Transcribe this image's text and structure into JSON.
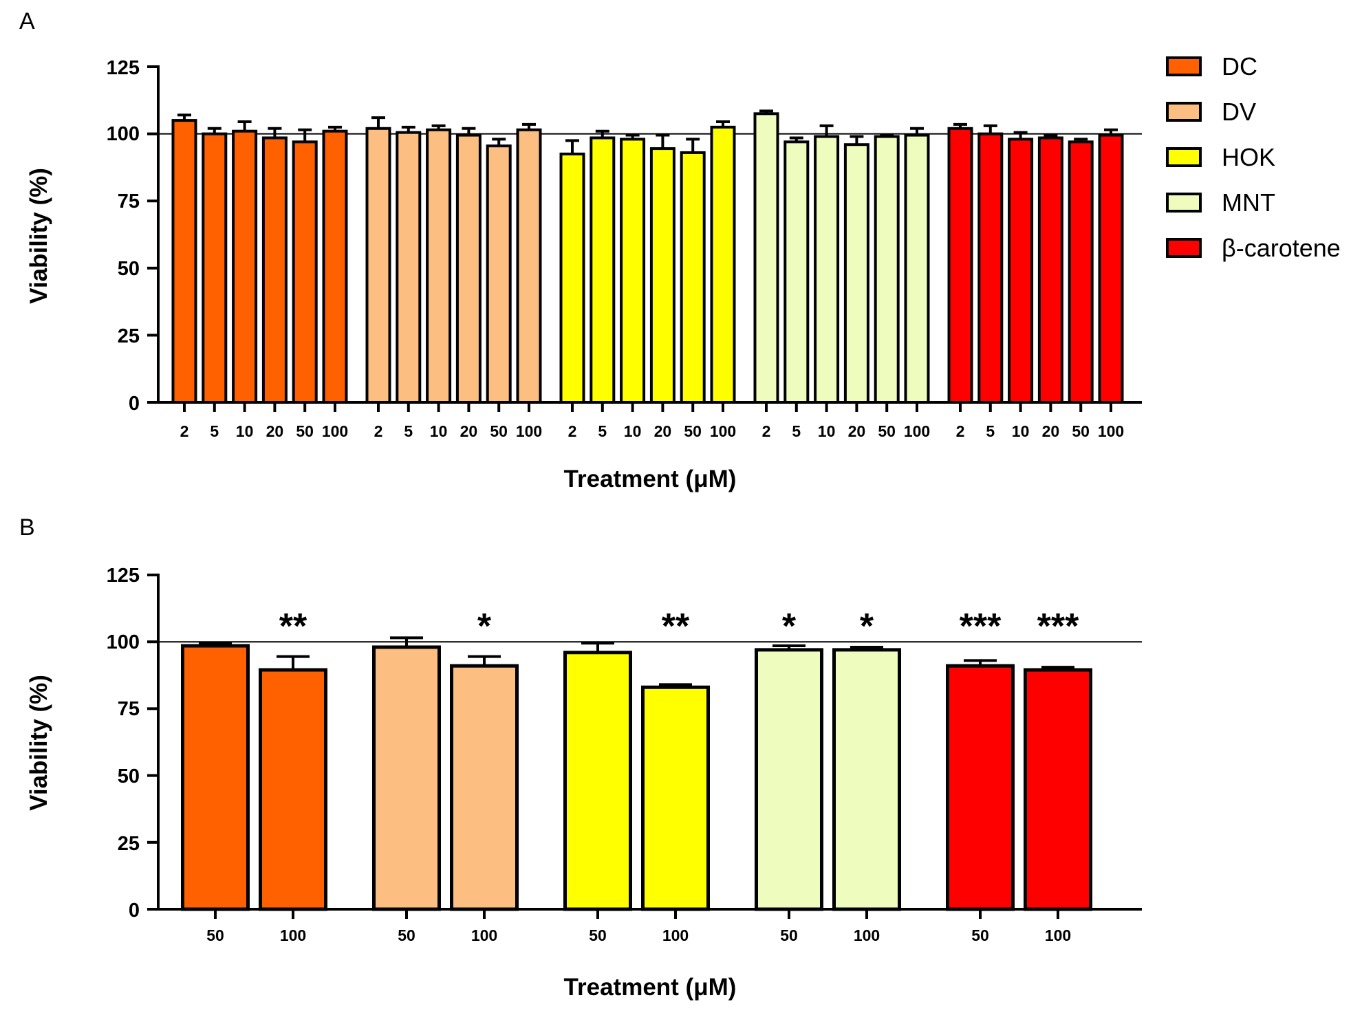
{
  "chart_data": [
    {
      "type": "bar",
      "panel": "A",
      "title": "",
      "xlabel": "Treatment (μM)",
      "ylabel": "Viability (%)",
      "ylim": [
        0,
        125
      ],
      "yticks": [
        "0",
        "25",
        "50",
        "75",
        "100",
        "125"
      ],
      "reference_line": 100,
      "categories": [
        "2",
        "5",
        "10",
        "20",
        "50",
        "100"
      ],
      "series": [
        {
          "name": "DC",
          "color": "#FF6000",
          "values": [
            105,
            100,
            101,
            98.5,
            97,
            101
          ],
          "errors": [
            2,
            2,
            3.5,
            3.5,
            4.5,
            1.5
          ]
        },
        {
          "name": "DV",
          "color": "#FDBE82",
          "values": [
            102,
            100.5,
            101.5,
            99.5,
            95.5,
            101.5
          ],
          "errors": [
            4,
            2,
            1.5,
            2.5,
            2.5,
            2
          ]
        },
        {
          "name": "HOK",
          "color": "#FFFF00",
          "values": [
            92.5,
            98.5,
            98,
            94.5,
            93,
            102.5
          ],
          "errors": [
            5,
            2.5,
            1.5,
            5,
            5,
            2
          ]
        },
        {
          "name": "MNT",
          "color": "#EEFDBD",
          "values": [
            107.5,
            97,
            99,
            96,
            99,
            99.5
          ],
          "errors": [
            1,
            1.5,
            4,
            3,
            0.5,
            2.5
          ]
        },
        {
          "name": "β-carotene",
          "color": "#FF0000",
          "values": [
            102,
            100,
            98,
            98.5,
            97,
            99.5
          ],
          "errors": [
            1.5,
            3,
            2.5,
            1,
            1,
            2
          ]
        }
      ]
    },
    {
      "type": "bar",
      "panel": "B",
      "title": "",
      "xlabel": "Treatment (μM)",
      "ylabel": "Viability (%)",
      "ylim": [
        0,
        125
      ],
      "yticks": [
        "0",
        "25",
        "50",
        "75",
        "100",
        "125"
      ],
      "reference_line": 100,
      "categories": [
        "50",
        "100"
      ],
      "series": [
        {
          "name": "DC",
          "color": "#FF6000",
          "values": [
            98.5,
            89.5
          ],
          "errors": [
            1,
            5
          ],
          "significance": [
            "",
            "**"
          ]
        },
        {
          "name": "DV",
          "color": "#FDBE82",
          "values": [
            98,
            91
          ],
          "errors": [
            3.5,
            3.5
          ],
          "significance": [
            "",
            "*"
          ]
        },
        {
          "name": "HOK",
          "color": "#FFFF00",
          "values": [
            96,
            83
          ],
          "errors": [
            3.5,
            1
          ],
          "significance": [
            "",
            "**"
          ]
        },
        {
          "name": "MNT",
          "color": "#EEFDBD",
          "values": [
            97,
            97
          ],
          "errors": [
            1.5,
            1
          ],
          "significance": [
            "*",
            "*"
          ]
        },
        {
          "name": "β-carotene",
          "color": "#FF0000",
          "values": [
            91,
            89.5
          ],
          "errors": [
            2,
            1
          ],
          "significance": [
            "***",
            "***"
          ]
        }
      ]
    }
  ]
}
